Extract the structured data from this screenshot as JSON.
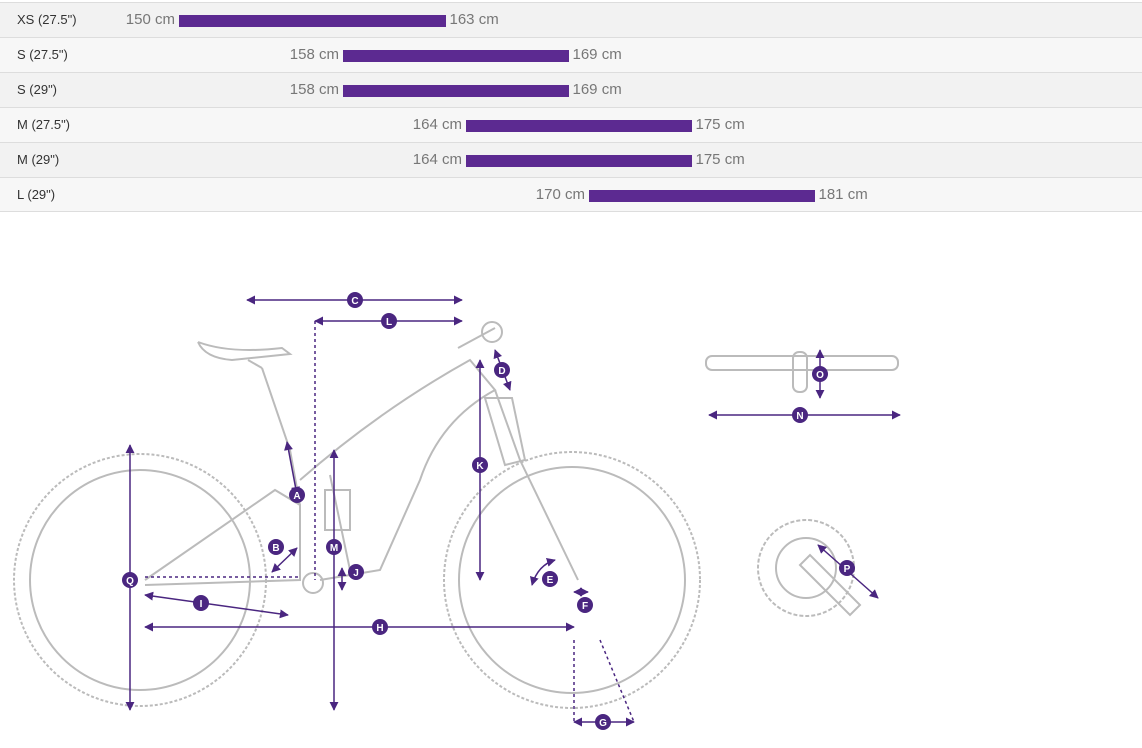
{
  "size_chart": {
    "accent_color": "#5c2a91",
    "rows": [
      {
        "size": "XS (27.5\")",
        "min": "150 cm",
        "max": "163 cm",
        "min_cm": 150,
        "max_cm": 163
      },
      {
        "size": "S (27.5\")",
        "min": "158 cm",
        "max": "169 cm",
        "min_cm": 158,
        "max_cm": 169
      },
      {
        "size": "S (29\")",
        "min": "158 cm",
        "max": "169 cm",
        "min_cm": 158,
        "max_cm": 169
      },
      {
        "size": "M (27.5\")",
        "min": "164 cm",
        "max": "175 cm",
        "min_cm": 164,
        "max_cm": 175
      },
      {
        "size": "M (29\")",
        "min": "164 cm",
        "max": "175 cm",
        "min_cm": 164,
        "max_cm": 175
      },
      {
        "size": "L (29\")",
        "min": "170 cm",
        "max": "181 cm",
        "min_cm": 170,
        "max_cm": 181
      }
    ]
  },
  "geometry_diagram": {
    "marker_color": "#4a2680",
    "outline_color": "#bbbbbb",
    "markers": [
      "A",
      "B",
      "C",
      "D",
      "E",
      "F",
      "G",
      "H",
      "I",
      "J",
      "K",
      "L",
      "M",
      "N",
      "O",
      "P",
      "Q"
    ]
  }
}
